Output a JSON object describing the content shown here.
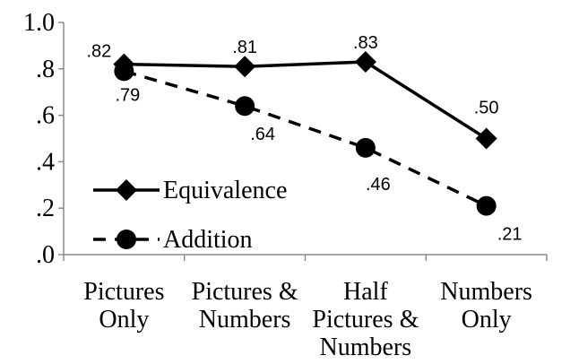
{
  "chart_data": {
    "type": "line",
    "categories": [
      [
        "Pictures",
        "Only"
      ],
      [
        "Pictures &",
        "Numbers"
      ],
      [
        "Half",
        "Pictures &",
        "Numbers"
      ],
      [
        "Numbers",
        "Only"
      ]
    ],
    "y_ticks": [
      ".0",
      ".2",
      ".4",
      ".6",
      ".8",
      "1.0"
    ],
    "ylim": [
      0,
      1.0
    ],
    "grid": false,
    "legend_position": "bottom-left",
    "series": [
      {
        "name": "Equivalence",
        "values": [
          0.82,
          0.81,
          0.83,
          0.5
        ],
        "labels": [
          ".82",
          ".81",
          ".83",
          ".50"
        ],
        "line_style": "solid",
        "marker": "diamond",
        "color": "#000000"
      },
      {
        "name": "Addition",
        "values": [
          0.79,
          0.64,
          0.46,
          0.21
        ],
        "labels": [
          ".79",
          ".64",
          ".46",
          ".21"
        ],
        "line_style": "dashed",
        "marker": "circle",
        "color": "#000000"
      }
    ]
  }
}
